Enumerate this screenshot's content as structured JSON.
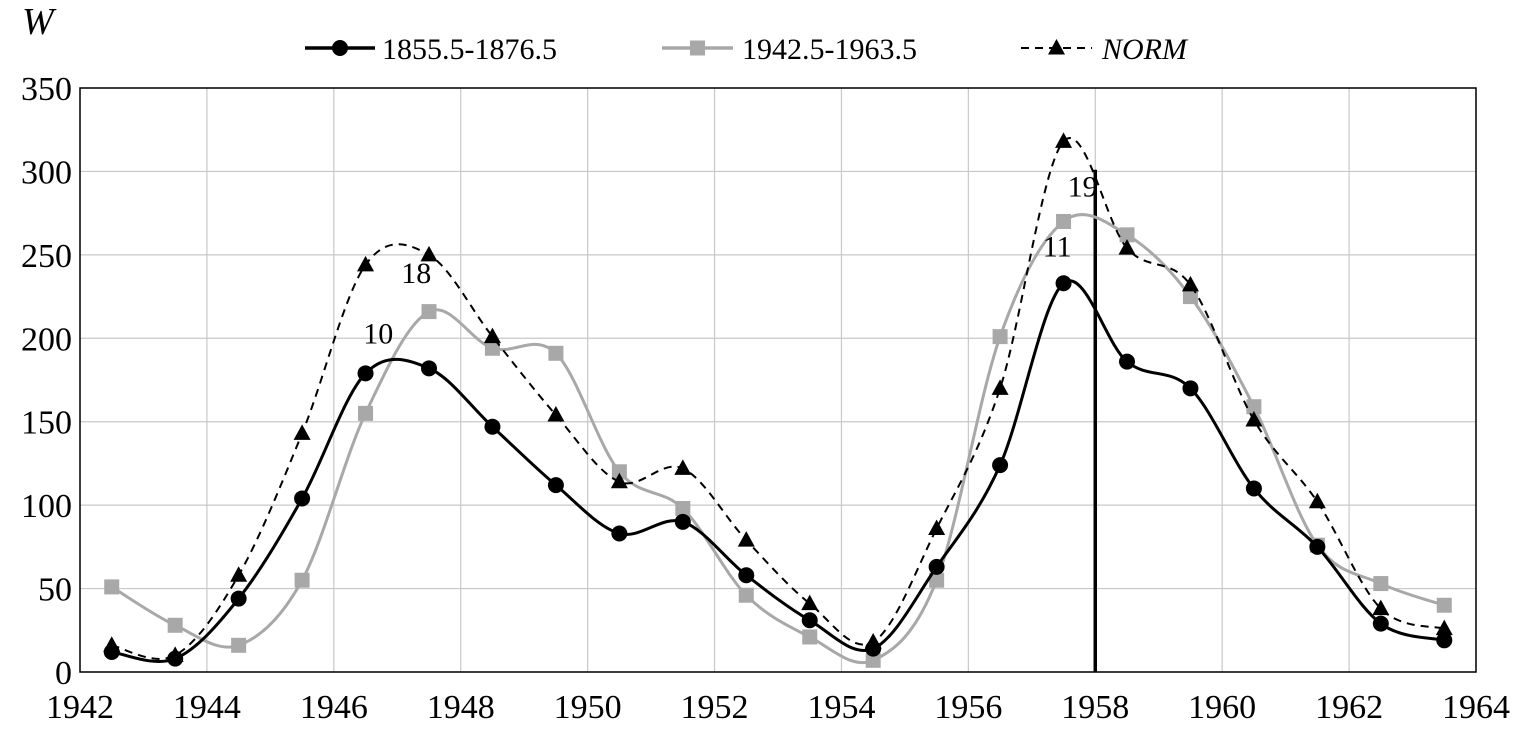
{
  "chart_data": {
    "type": "line",
    "ylabel": "W",
    "xlim": [
      1942,
      1964
    ],
    "ylim": [
      0,
      350
    ],
    "xticks": [
      1942,
      1944,
      1946,
      1948,
      1950,
      1952,
      1954,
      1956,
      1958,
      1960,
      1962,
      1964
    ],
    "yticks": [
      0,
      50,
      100,
      150,
      200,
      250,
      300,
      350
    ],
    "grid": true,
    "legend_position": "top",
    "x": [
      1942.5,
      1943.5,
      1944.5,
      1945.5,
      1946.5,
      1947.5,
      1948.5,
      1949.5,
      1950.5,
      1951.5,
      1952.5,
      1953.5,
      1954.5,
      1955.5,
      1956.5,
      1957.5,
      1958.5,
      1959.5,
      1960.5,
      1961.5,
      1962.5,
      1963.5
    ],
    "series": [
      {
        "name": "1855.5-1876.5",
        "color": "#000000",
        "marker": "circle",
        "dash": "solid",
        "values": [
          12,
          8,
          44,
          104,
          179,
          182,
          147,
          112,
          83,
          90,
          58,
          31,
          14,
          63,
          124,
          233,
          186,
          170,
          110,
          75,
          29,
          19
        ]
      },
      {
        "name": "1942.5-1963.5",
        "color": "#a8a8a8",
        "marker": "square",
        "dash": "solid",
        "values": [
          51,
          28,
          16,
          55,
          155,
          216,
          194,
          191,
          120,
          98,
          46,
          21,
          7,
          55,
          201,
          270,
          262,
          225,
          159,
          76,
          53,
          40
        ]
      },
      {
        "name": "NORM",
        "color": "#000000",
        "marker": "triangle",
        "dash": "dashed",
        "values": [
          16,
          10,
          58,
          143,
          244,
          250,
          201,
          154,
          114,
          122,
          79,
          41,
          18,
          86,
          170,
          318,
          254,
          232,
          151,
          102,
          38,
          26
        ]
      }
    ],
    "annotations": [
      {
        "text": "10",
        "x": 1946.7,
        "y": 197
      },
      {
        "text": "18",
        "x": 1947.3,
        "y": 233
      },
      {
        "text": "11",
        "x": 1957.4,
        "y": 249
      },
      {
        "text": "19",
        "x": 1957.8,
        "y": 285
      }
    ],
    "reference_line": {
      "x": 1958,
      "y_top": 301
    }
  }
}
